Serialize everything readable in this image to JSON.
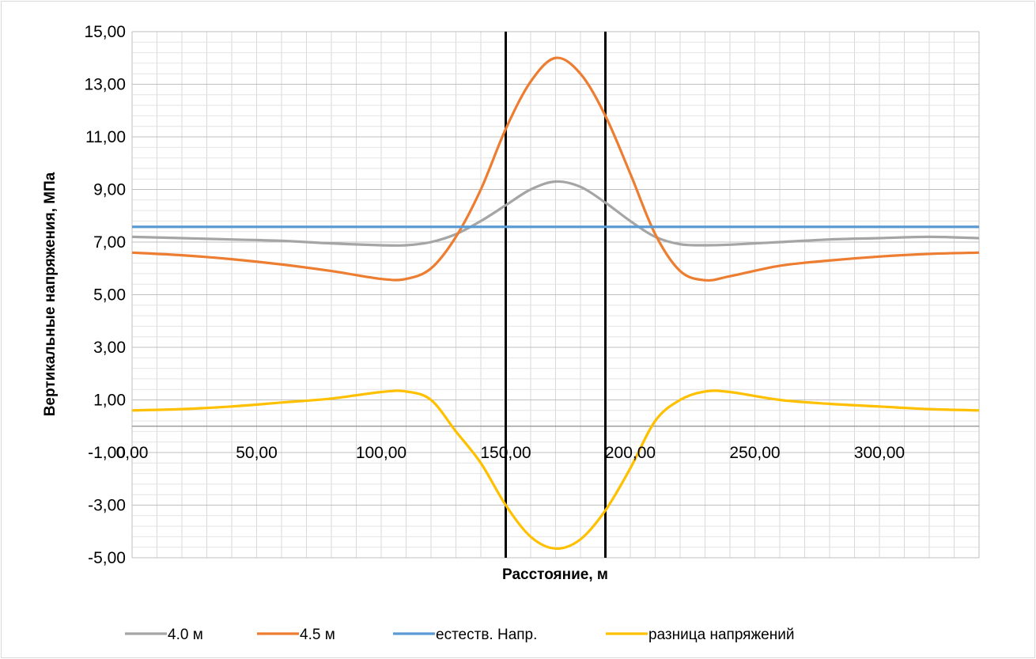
{
  "chart_data": {
    "type": "line",
    "xlabel": "Расстояние, м",
    "ylabel": "Вертикальные напряжения, МПа",
    "xlim": [
      0,
      340
    ],
    "ylim": [
      -5,
      15
    ],
    "x_ticks": [
      0,
      50,
      100,
      150,
      200,
      250,
      300
    ],
    "x_tick_labels": [
      "0,00",
      "50,00",
      "100,00",
      "150,00",
      "200,00",
      "250,00",
      "300,00"
    ],
    "y_ticks": [
      15,
      13,
      11,
      9,
      7,
      5,
      3,
      1,
      -1,
      -3,
      -5
    ],
    "y_tick_labels": [
      "15,00",
      "13,00",
      "11,00",
      "9,00",
      "7,00",
      "5,00",
      "3,00",
      "1,00",
      "-1,00",
      "-3,00",
      "-5,00"
    ],
    "grid": true,
    "legend_position": "bottom",
    "vertical_lines": [
      150,
      190
    ],
    "x": [
      0,
      20,
      40,
      60,
      80,
      100,
      110,
      120,
      130,
      140,
      150,
      160,
      170,
      180,
      190,
      200,
      210,
      220,
      230,
      240,
      260,
      280,
      300,
      320,
      340
    ],
    "series": [
      {
        "name": "4.0 м",
        "color": "#a5a5a5",
        "values": [
          7.2,
          7.15,
          7.1,
          7.05,
          6.95,
          6.88,
          6.88,
          7.0,
          7.3,
          7.8,
          8.4,
          9.0,
          9.3,
          9.1,
          8.5,
          7.8,
          7.2,
          6.92,
          6.88,
          6.9,
          7.0,
          7.1,
          7.15,
          7.2,
          7.15
        ]
      },
      {
        "name": "4.5 м",
        "color": "#ed7d31",
        "values": [
          6.6,
          6.5,
          6.35,
          6.15,
          5.9,
          5.6,
          5.6,
          6.0,
          7.2,
          9.0,
          11.3,
          13.1,
          14.0,
          13.4,
          11.8,
          9.6,
          7.3,
          5.9,
          5.55,
          5.7,
          6.1,
          6.3,
          6.45,
          6.55,
          6.6
        ]
      },
      {
        "name": "естеств. Напр.",
        "color": "#5b9bd5",
        "values": [
          7.58,
          7.58,
          7.58,
          7.58,
          7.58,
          7.58,
          7.58,
          7.58,
          7.58,
          7.58,
          7.58,
          7.58,
          7.58,
          7.58,
          7.58,
          7.58,
          7.58,
          7.58,
          7.58,
          7.58,
          7.58,
          7.58,
          7.58,
          7.58,
          7.58
        ]
      },
      {
        "name": "разница напряжений",
        "color": "#ffc000",
        "values": [
          0.6,
          0.65,
          0.75,
          0.9,
          1.05,
          1.3,
          1.32,
          1.0,
          -0.2,
          -1.4,
          -3.0,
          -4.2,
          -4.65,
          -4.3,
          -3.2,
          -1.6,
          0.2,
          1.0,
          1.32,
          1.3,
          1.0,
          0.85,
          0.75,
          0.65,
          0.6
        ]
      }
    ]
  }
}
